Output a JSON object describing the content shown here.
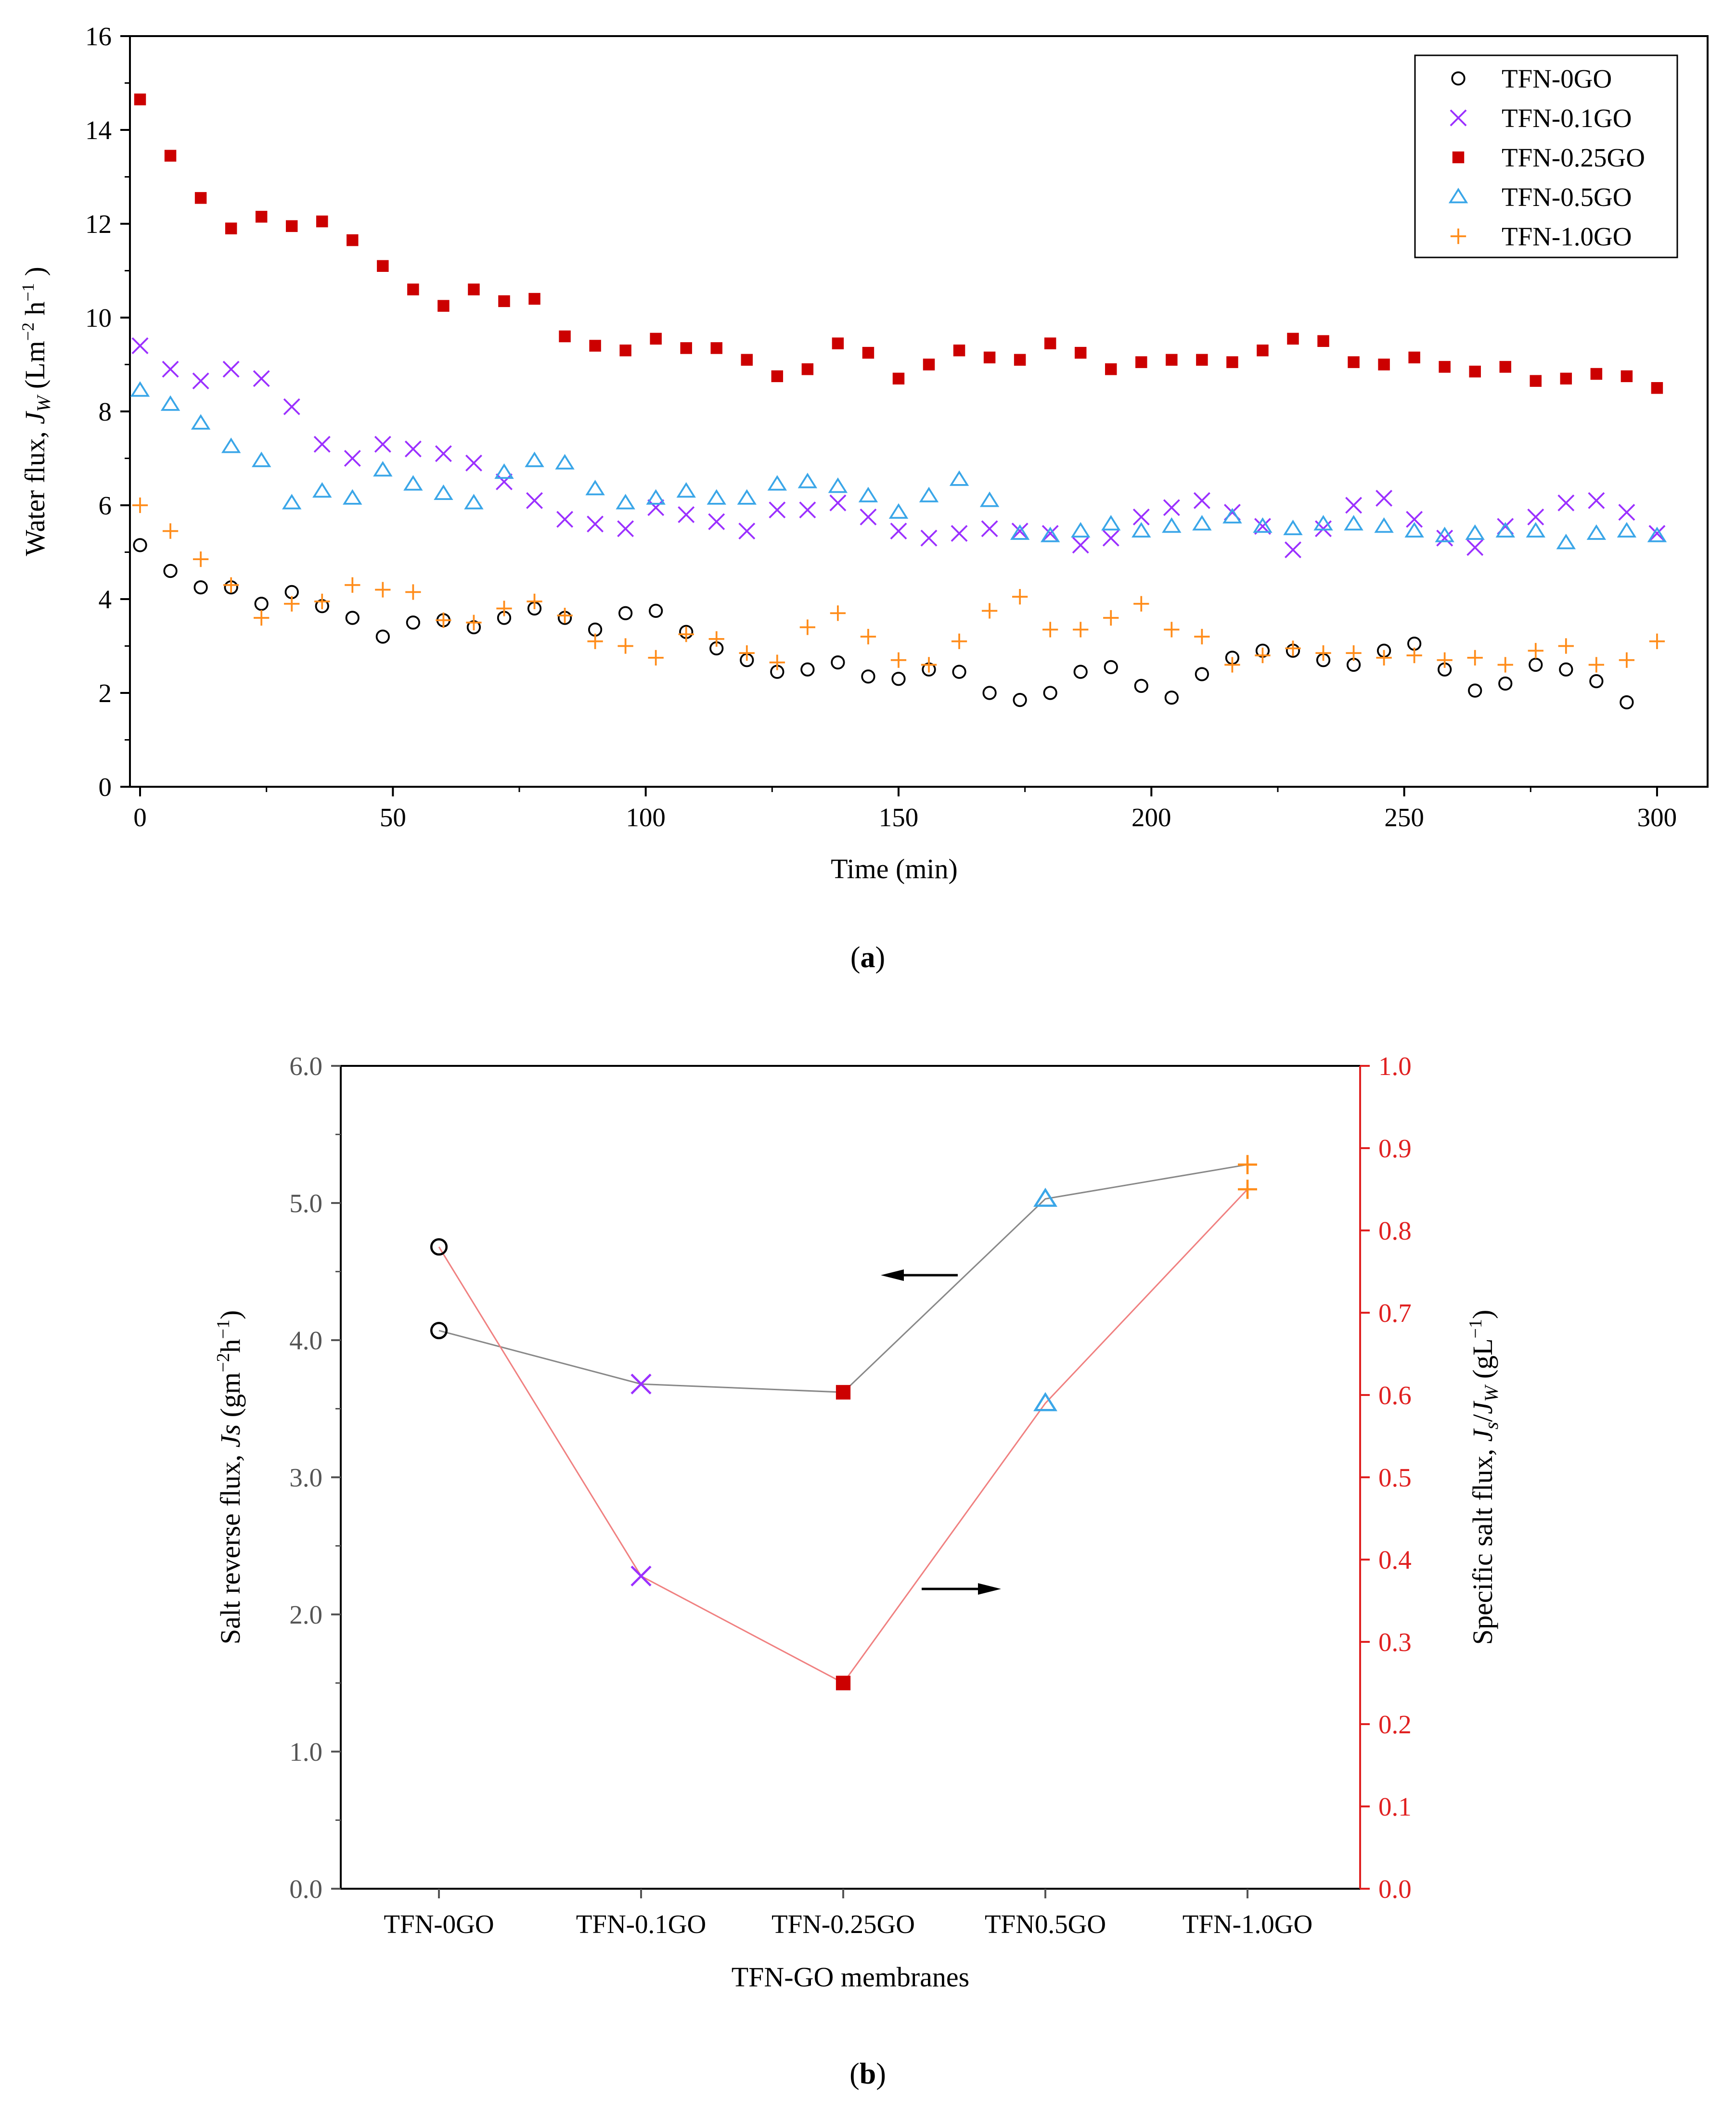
{
  "chart_data": [
    {
      "type": "scatter",
      "xlabel": "Time (min)",
      "ylabel": "Water flux, J_W (Lm⁻² h⁻¹)",
      "ylabel_parts": {
        "main": "Water flux, ",
        "sym": "J",
        "sub": "W",
        "rest": " (Lm",
        "sup1": "−2",
        "mid": " h",
        "sup2": "−1",
        "end": " )"
      },
      "xlim": [
        -2,
        310
      ],
      "ylim": [
        0,
        16
      ],
      "xticks": [
        0,
        50,
        100,
        150,
        200,
        250,
        300
      ],
      "yticks": [
        0,
        2,
        4,
        6,
        8,
        10,
        12,
        14,
        16
      ],
      "panel_label": "a",
      "legend_location": "top-right",
      "x": [
        0,
        6,
        12,
        18,
        24,
        30,
        36,
        42,
        48,
        54,
        60,
        66,
        72,
        78,
        84,
        90,
        96,
        102,
        108,
        114,
        120,
        126,
        132,
        138,
        144,
        150,
        156,
        162,
        168,
        174,
        180,
        186,
        192,
        198,
        204,
        210,
        216,
        222,
        228,
        234,
        240,
        246,
        252,
        258,
        264,
        270,
        276,
        282,
        288,
        294,
        300
      ],
      "series": [
        {
          "name": "TFN-0GO",
          "marker": "circle",
          "color": "#000000",
          "values": [
            5.15,
            4.6,
            4.25,
            4.25,
            3.9,
            4.15,
            3.85,
            3.6,
            3.2,
            3.5,
            3.55,
            3.4,
            3.6,
            3.8,
            3.6,
            3.35,
            3.7,
            3.75,
            3.3,
            2.95,
            2.7,
            2.45,
            2.5,
            2.65,
            2.35,
            2.3,
            2.5,
            2.45,
            2.0,
            1.85,
            2.0,
            2.45,
            2.55,
            2.15,
            1.9,
            2.4,
            2.75,
            2.9,
            2.9,
            2.7,
            2.6,
            2.9,
            3.05,
            2.5,
            2.05,
            2.2,
            2.6,
            2.5,
            2.25,
            1.8,
            null
          ]
        },
        {
          "name": "TFN-0.1GO",
          "marker": "x",
          "color": "#9b30ff",
          "values": [
            9.4,
            8.9,
            8.65,
            8.9,
            8.7,
            8.1,
            7.3,
            7.0,
            7.3,
            7.2,
            7.1,
            6.9,
            6.5,
            6.1,
            5.7,
            5.6,
            5.5,
            5.95,
            5.8,
            5.65,
            5.45,
            5.9,
            5.9,
            6.05,
            5.75,
            5.45,
            5.3,
            5.4,
            5.5,
            5.45,
            5.4,
            5.15,
            5.3,
            5.75,
            5.95,
            6.1,
            5.85,
            5.55,
            5.05,
            5.5,
            6.0,
            6.15,
            5.7,
            5.3,
            5.1,
            5.55,
            5.75,
            6.05,
            6.1,
            5.85,
            5.4
          ]
        },
        {
          "name": "TFN-0.25GO",
          "marker": "square",
          "color": "#cc0000",
          "values": [
            14.65,
            13.45,
            12.55,
            11.9,
            12.15,
            11.95,
            12.05,
            11.65,
            11.1,
            10.6,
            10.25,
            10.6,
            10.35,
            10.4,
            9.6,
            9.4,
            9.3,
            9.55,
            9.35,
            9.35,
            9.1,
            8.75,
            8.9,
            9.45,
            9.25,
            8.7,
            9.0,
            9.3,
            9.15,
            9.1,
            9.45,
            9.25,
            8.9,
            9.05,
            9.1,
            9.1,
            9.05,
            9.3,
            9.55,
            9.5,
            9.05,
            9.0,
            9.15,
            8.95,
            8.85,
            8.95,
            8.65,
            8.7,
            8.8,
            8.75,
            8.5
          ]
        },
        {
          "name": "TFN-0.5GO",
          "marker": "triangle",
          "color": "#3aa6e8",
          "values": [
            8.45,
            8.15,
            7.75,
            7.25,
            6.95,
            6.05,
            6.3,
            6.15,
            6.75,
            6.45,
            6.25,
            6.05,
            6.7,
            6.95,
            6.9,
            6.35,
            6.05,
            6.15,
            6.3,
            6.15,
            6.15,
            6.45,
            6.5,
            6.4,
            6.2,
            5.85,
            6.2,
            6.55,
            6.1,
            5.4,
            5.35,
            5.45,
            5.6,
            5.45,
            5.55,
            5.6,
            5.75,
            5.55,
            5.5,
            5.6,
            5.6,
            5.55,
            5.45,
            5.35,
            5.4,
            5.45,
            5.45,
            5.2,
            5.4,
            5.45,
            5.35
          ]
        },
        {
          "name": "TFN-1.0GO",
          "marker": "plus",
          "color": "#ff8c1a",
          "values": [
            6.0,
            5.45,
            4.85,
            4.3,
            3.6,
            3.9,
            3.95,
            4.3,
            4.2,
            4.15,
            3.55,
            3.5,
            3.8,
            3.95,
            3.65,
            3.1,
            3.0,
            2.75,
            3.25,
            3.15,
            2.85,
            2.65,
            3.4,
            3.7,
            3.2,
            2.7,
            2.6,
            3.1,
            3.75,
            4.05,
            3.35,
            3.35,
            3.6,
            3.9,
            3.35,
            3.2,
            2.6,
            2.8,
            2.95,
            2.85,
            2.85,
            2.75,
            2.8,
            2.7,
            2.75,
            2.6,
            2.9,
            3.0,
            2.6,
            2.7,
            3.1
          ]
        }
      ]
    },
    {
      "type": "line",
      "xlabel": "TFN-GO membranes",
      "ylabel": "Salt reverse flux, Js (gm⁻²h⁻¹)",
      "ylabel_parts": {
        "main": "Salt reverse flux, ",
        "sym": "Js",
        "rest": " (gm",
        "sup": "−2",
        "mid": "h",
        "sup2": "−1",
        "end": ")"
      },
      "y2label": "Specific salt flux, Js/Jw (gL⁻¹)",
      "y2label_parts": {
        "main": "Specific salt flux, ",
        "sym1": "J",
        "sub1": "s",
        "slash": "/",
        "sym2": "J",
        "sub2": "W",
        "rest": " (gL",
        "sup": "−1",
        "end": ")"
      },
      "categories": [
        "TFN-0GO",
        "TFN-0.1GO",
        "TFN-0.25GO",
        "TFN0.5GO",
        "TFN-1.0GO"
      ],
      "markers": [
        "circle",
        "x",
        "square",
        "triangle",
        "plus"
      ],
      "marker_colors": [
        "#000000",
        "#9b30ff",
        "#cc0000",
        "#3aa6e8",
        "#ff8c1a"
      ],
      "ylim": [
        0,
        6
      ],
      "yticks": [
        "0.0",
        "1.0",
        "2.0",
        "3.0",
        "4.0",
        "5.0",
        "6.0"
      ],
      "y2lim": [
        0,
        1
      ],
      "y2ticks": [
        "0.0",
        "0.1",
        "0.2",
        "0.3",
        "0.4",
        "0.5",
        "0.6",
        "0.7",
        "0.8",
        "0.9",
        "1.0"
      ],
      "panel_label": "b",
      "series": [
        {
          "name": "Salt reverse flux",
          "axis": "left",
          "line_color": "#888888",
          "values": [
            4.07,
            3.68,
            3.62,
            5.03,
            5.28
          ]
        },
        {
          "name": "Specific salt flux",
          "axis": "right",
          "line_color": "#f08080",
          "values": [
            0.78,
            0.38,
            0.25,
            0.59,
            0.85
          ]
        }
      ],
      "annotations": [
        {
          "type": "arrow",
          "direction": "left",
          "points_to": "left axis"
        },
        {
          "type": "arrow",
          "direction": "right",
          "points_to": "right axis"
        }
      ]
    }
  ]
}
